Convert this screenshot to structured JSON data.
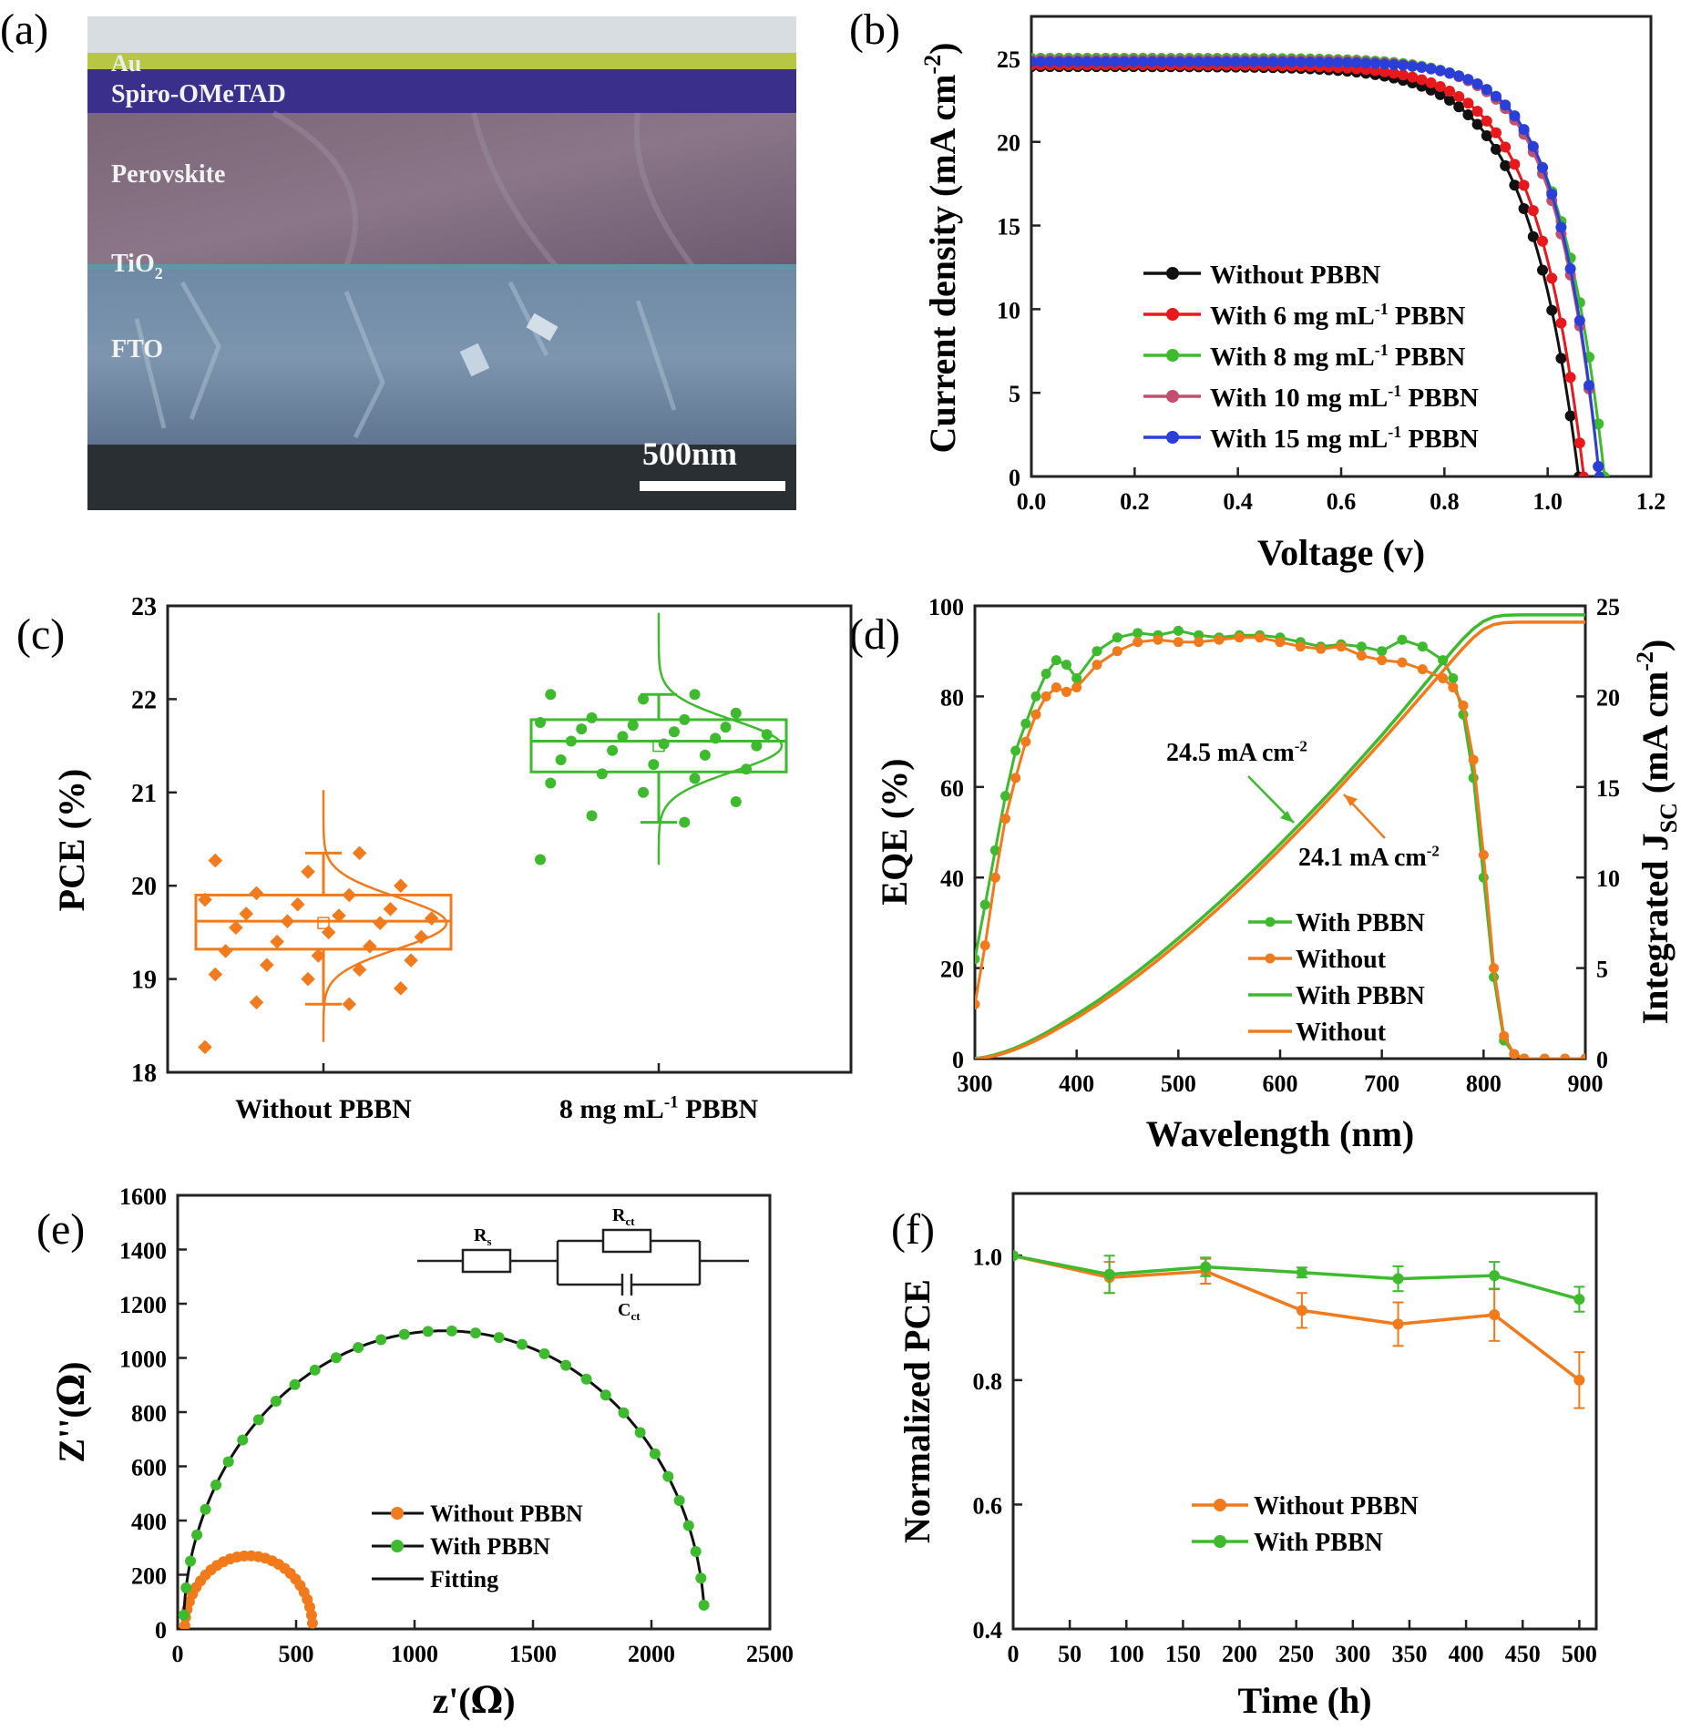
{
  "figure": {
    "panel_letters": [
      "(a)",
      "(b)",
      "(c)",
      "(d)",
      "(e)",
      "(f)"
    ]
  },
  "sem": {
    "layers": [
      "Au",
      "Spiro-OMeTAD",
      "Perovskite",
      "TiO",
      "2",
      "FTO"
    ],
    "scale_bar": "500nm"
  },
  "chart_data": [
    {
      "id": "b",
      "type": "line",
      "xlabel": "Voltage (v)",
      "ylabel": "Current density (mA cm",
      "ylabel_sup": "-2",
      "ylabel_close": ")",
      "xlim": [
        0.0,
        1.2
      ],
      "ylim": [
        0,
        27.5
      ],
      "xticks": [
        "0.0",
        "0.2",
        "0.4",
        "0.6",
        "0.8",
        "1.0",
        "1.2"
      ],
      "yticks": [
        "0",
        "5",
        "10",
        "15",
        "20",
        "25"
      ],
      "legend_location": "center",
      "series": [
        {
          "name": "Without  PBBN",
          "pre": "Without  PBBN",
          "sup": "",
          "post": "",
          "color": "#111111",
          "jsc": 24.5,
          "voc": 1.06,
          "ff": 0.74
        },
        {
          "name": "With 6 mg mL-1 PBBN",
          "pre": "With   6 mg mL",
          "sup": "-1",
          "post": " PBBN",
          "color": "#e8191c",
          "jsc": 24.6,
          "voc": 1.07,
          "ff": 0.76
        },
        {
          "name": "With 8 mg mL-1 PBBN",
          "pre": "With   8 mg mL",
          "sup": "-1",
          "post": " PBBN",
          "color": "#3dba2d",
          "jsc": 25.0,
          "voc": 1.11,
          "ff": 0.79
        },
        {
          "name": "With 10 mg mL-1 PBBN",
          "pre": "With 10 mg mL",
          "sup": "-1",
          "post": " PBBN",
          "color": "#c0506e",
          "jsc": 24.9,
          "voc": 1.1,
          "ff": 0.78
        },
        {
          "name": "With 15 mg mL-1 PBBN",
          "pre": "With 15 mg mL",
          "sup": "-1",
          "post": " PBBN",
          "color": "#2a3fd8",
          "jsc": 24.8,
          "voc": 1.1,
          "ff": 0.775
        }
      ]
    },
    {
      "id": "c",
      "type": "box",
      "ylabel": "PCE (%)",
      "ylim": [
        18,
        23
      ],
      "yticks": [
        "18",
        "19",
        "20",
        "21",
        "22",
        "23"
      ],
      "categories": [
        {
          "pre": "Without PBBN",
          "sup": "",
          "post": "",
          "color": "#f07a1c",
          "q1": 19.32,
          "median": 19.62,
          "q3": 19.9,
          "whisker_low": 18.73,
          "whisker_high": 20.35,
          "mean": 19.6,
          "points": [
            18.27,
            18.73,
            18.75,
            18.9,
            19.0,
            19.05,
            19.1,
            19.15,
            19.2,
            19.25,
            19.3,
            19.35,
            19.4,
            19.45,
            19.5,
            19.55,
            19.6,
            19.62,
            19.65,
            19.68,
            19.7,
            19.75,
            19.8,
            19.85,
            19.9,
            19.92,
            20.0,
            20.15,
            20.27,
            20.35
          ]
        },
        {
          "pre": "8 mg mL",
          "sup": "-1",
          "post": " PBBN",
          "color": "#3dba2d",
          "q1": 21.22,
          "median": 21.55,
          "q3": 21.78,
          "whisker_low": 20.68,
          "whisker_high": 22.05,
          "mean": 21.5,
          "points": [
            20.28,
            20.68,
            20.75,
            20.9,
            21.0,
            21.1,
            21.15,
            21.2,
            21.25,
            21.3,
            21.35,
            21.4,
            21.45,
            21.5,
            21.52,
            21.55,
            21.58,
            21.6,
            21.62,
            21.65,
            21.68,
            21.7,
            21.72,
            21.75,
            21.78,
            21.8,
            21.85,
            22.0,
            22.05,
            22.05
          ]
        }
      ]
    },
    {
      "id": "d",
      "type": "line",
      "xlabel": "Wavelength (nm)",
      "ylabel": "EQE (%)",
      "ylabel2": "Integrated J",
      "ylabel2_sub": "SC",
      "ylabel2_unit": " (mA cm",
      "ylabel2_sup": "-2",
      "ylabel2_close": ")",
      "xlim": [
        300,
        900
      ],
      "ylim": [
        0,
        100
      ],
      "y2lim": [
        0,
        25
      ],
      "xticks": [
        "300",
        "400",
        "500",
        "600",
        "700",
        "800",
        "900"
      ],
      "yticks": [
        "0",
        "20",
        "40",
        "60",
        "80",
        "100"
      ],
      "y2ticks": [
        "0",
        "5",
        "10",
        "15",
        "20",
        "25"
      ],
      "annotations": [
        {
          "pre": "24.5 mA cm",
          "sup": "-2",
          "color": "#3dba2d"
        },
        {
          "pre": "24.1 mA cm",
          "sup": "-2",
          "color": "#f07a1c"
        }
      ],
      "series": [
        {
          "name": "With PBBN",
          "kind": "EQE",
          "color": "#3dba2d",
          "integrated_final": 24.5,
          "x": [
            300,
            310,
            320,
            330,
            340,
            350,
            360,
            370,
            380,
            390,
            400,
            420,
            440,
            460,
            480,
            500,
            520,
            540,
            560,
            580,
            600,
            620,
            640,
            660,
            680,
            700,
            720,
            740,
            760,
            770,
            780,
            790,
            800,
            810,
            820,
            830,
            840,
            860,
            880,
            900
          ],
          "y": [
            22,
            34,
            46,
            58,
            68,
            74,
            80,
            85,
            88,
            87,
            84,
            90,
            93,
            94,
            93.5,
            94.5,
            93.5,
            93,
            93.5,
            93.5,
            93,
            92,
            91,
            91.5,
            91,
            90,
            92.5,
            91,
            88,
            84,
            76,
            62,
            40,
            18,
            4,
            1,
            0,
            0,
            0,
            0
          ]
        },
        {
          "name": "Without",
          "kind": "EQE",
          "color": "#f07a1c",
          "integrated_final": 24.1,
          "x": [
            300,
            310,
            320,
            330,
            340,
            350,
            360,
            370,
            380,
            390,
            400,
            420,
            440,
            460,
            480,
            500,
            520,
            540,
            560,
            580,
            600,
            620,
            640,
            660,
            680,
            700,
            720,
            740,
            760,
            770,
            780,
            790,
            800,
            810,
            820,
            830,
            840,
            860,
            880,
            900
          ],
          "y": [
            12,
            25,
            40,
            53,
            62,
            70,
            76,
            80,
            82,
            81,
            82,
            87,
            90,
            92,
            92.5,
            92,
            92,
            92.5,
            93,
            93,
            92,
            91,
            90.5,
            91,
            89,
            88,
            87.5,
            86,
            84,
            82,
            78,
            66,
            45,
            20,
            5,
            1,
            0,
            0,
            0,
            0
          ]
        },
        {
          "name": "With PBBN",
          "kind": "Integrated",
          "color": "#3dba2d",
          "integrated_final": 24.5
        },
        {
          "name": "Without",
          "kind": "Integrated",
          "color": "#f07a1c",
          "integrated_final": 24.1
        }
      ]
    },
    {
      "id": "e",
      "type": "scatter",
      "xlabel_pre": "z'(",
      "xlabel_sym": "Ω",
      "xlabel_post": ")",
      "ylabel_pre": "Z''(",
      "ylabel_sym": "Ω",
      "ylabel_post": ")",
      "xlim": [
        0,
        2500
      ],
      "ylim": [
        0,
        1600
      ],
      "xticks": [
        "0",
        "500",
        "1000",
        "1500",
        "2000",
        "2500"
      ],
      "yticks": [
        "0",
        "200",
        "400",
        "600",
        "800",
        "1000",
        "1200",
        "1400",
        "1600"
      ],
      "circuit_labels": {
        "rs": "R",
        "rs_sub": "s",
        "rct": "R",
        "rct_sub": "ct",
        "cct": "C",
        "cct_sub": "ct"
      },
      "series": [
        {
          "name": "Without PBBN",
          "color": "#f07a1c",
          "center_x": 300,
          "radius": 270,
          "n_points": 28
        },
        {
          "name": "With PBBN",
          "color": "#3dba2d",
          "center_x": 1125,
          "radius": 1100,
          "n_points": 34
        },
        {
          "name": "Fitting",
          "color": "#111111"
        }
      ]
    },
    {
      "id": "f",
      "type": "line",
      "xlabel": "Time (h)",
      "ylabel": "Normalized PCE",
      "xlim": [
        0,
        515
      ],
      "ylim": [
        0.4,
        1.1
      ],
      "xticks": [
        "0",
        "50",
        "100",
        "150",
        "200",
        "250",
        "300",
        "350",
        "400",
        "450",
        "500"
      ],
      "yticks": [
        "0.4",
        "0.6",
        "0.8",
        "1.0"
      ],
      "series": [
        {
          "name": "Without PBBN",
          "color": "#f07a1c",
          "x": [
            0,
            85,
            170,
            255,
            340,
            425,
            500
          ],
          "y": [
            1.0,
            0.965,
            0.975,
            0.912,
            0.89,
            0.905,
            0.8
          ],
          "err": [
            0,
            0.025,
            0.02,
            0.028,
            0.035,
            0.042,
            0.045
          ]
        },
        {
          "name": "With PBBN",
          "color": "#3dba2d",
          "x": [
            0,
            85,
            170,
            255,
            340,
            425,
            500
          ],
          "y": [
            1.0,
            0.97,
            0.982,
            0.973,
            0.963,
            0.968,
            0.93
          ],
          "err": [
            0,
            0.03,
            0.015,
            0.008,
            0.02,
            0.022,
            0.02
          ]
        }
      ]
    }
  ]
}
